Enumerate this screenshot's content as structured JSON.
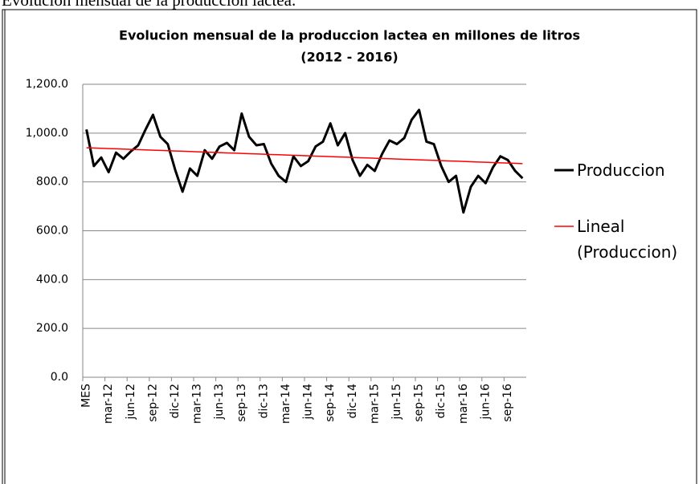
{
  "caption": "Evolución mensual de la producción láctea.",
  "chart_data": {
    "type": "line",
    "title": "Evolucion mensual de la produccion lactea en millones de litros",
    "subtitle": "(2012 - 2016)",
    "categories": [
      "MES",
      null,
      null,
      "mar-12",
      null,
      null,
      "jun-12",
      null,
      null,
      "sep-12",
      null,
      null,
      "dic-12",
      null,
      null,
      "mar-13",
      null,
      null,
      "jun-13",
      null,
      null,
      "sep-13",
      null,
      null,
      "dic-13",
      null,
      null,
      "mar-14",
      null,
      null,
      "jun-14",
      null,
      null,
      "sep-14",
      null,
      null,
      "dic-14",
      null,
      null,
      "mar-15",
      null,
      null,
      "jun-15",
      null,
      null,
      "sep-15",
      null,
      null,
      "dic-15",
      null,
      null,
      "mar-16",
      null,
      null,
      "jun-16",
      null,
      null,
      "sep-16",
      null,
      null
    ],
    "series": [
      {
        "name": "Produccion",
        "color": "#000000",
        "values": [
          1015,
          865,
          900,
          840,
          920,
          895,
          925,
          950,
          1015,
          1075,
          985,
          955,
          850,
          760,
          855,
          825,
          930,
          895,
          945,
          960,
          930,
          1080,
          985,
          950,
          955,
          875,
          825,
          800,
          905,
          865,
          885,
          945,
          965,
          1040,
          950,
          1000,
          890,
          825,
          870,
          845,
          915,
          970,
          955,
          980,
          1055,
          1095,
          965,
          955,
          865,
          800,
          825,
          675,
          780,
          825,
          795,
          860,
          905,
          890,
          845,
          815
        ]
      },
      {
        "name": "Lineal (Produccion)",
        "color": "#ff0000",
        "values": [
          940,
          938.9,
          937.8,
          936.7,
          935.6,
          934.5,
          933.4,
          932.3,
          931.2,
          930.1,
          929,
          927.9,
          926.8,
          925.7,
          924.6,
          923.5,
          922.4,
          921.3,
          920.2,
          919.1,
          918,
          916.9,
          915.8,
          914.7,
          913.6,
          912.5,
          911.4,
          910.3,
          909.2,
          908.1,
          907,
          905.9,
          904.8,
          903.7,
          902.6,
          901.5,
          900.4,
          899.3,
          898.2,
          897.1,
          896,
          894.9,
          893.8,
          892.7,
          891.6,
          890.5,
          889.4,
          888.3,
          887.2,
          886.1,
          885,
          883.9,
          882.8,
          881.7,
          880.6,
          879.5,
          878.4,
          877.3,
          876.2,
          875.1
        ]
      }
    ],
    "ylim": [
      0,
      1200
    ],
    "yticks": [
      {
        "value": 0,
        "label": "0.0"
      },
      {
        "value": 200,
        "label": "200.0"
      },
      {
        "value": 400,
        "label": "400.0"
      },
      {
        "value": 600,
        "label": "600.0"
      },
      {
        "value": 800,
        "label": "800.0"
      },
      {
        "value": 1000,
        "label": "1,000.0"
      },
      {
        "value": 1200,
        "label": "1,200.0"
      }
    ],
    "grid": true,
    "legend": "right"
  }
}
